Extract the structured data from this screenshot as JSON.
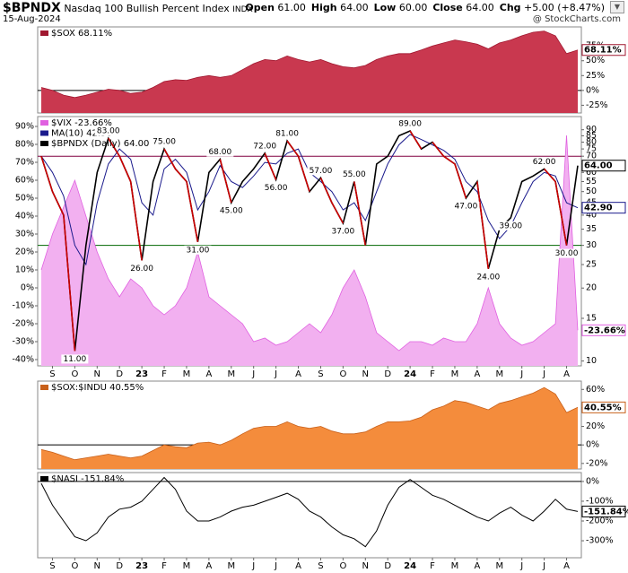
{
  "header": {
    "symbol": "$BPNDX",
    "name": "Nasdaq 100 Bullish Percent Index",
    "exchange": "INDX",
    "date": "15-Aug-2024",
    "quote": [
      {
        "label": "Open",
        "value": "61.00"
      },
      {
        "label": "High",
        "value": "64.00"
      },
      {
        "label": "Low",
        "value": "60.00"
      },
      {
        "label": "Close",
        "value": "64.00"
      },
      {
        "label": "Chg",
        "value": "+5.00 (+8.47%)"
      }
    ],
    "watermark": "@ StockCharts.com"
  },
  "chart_data": [
    {
      "type": "area",
      "y_axis_side": "right",
      "ylim": [
        -38,
        107
      ],
      "yticks": [
        {
          "value": 75,
          "label": "75%"
        },
        {
          "value": 50,
          "label": "50%"
        },
        {
          "value": 25,
          "label": "25%"
        },
        {
          "value": 0,
          "label": "0%"
        },
        {
          "value": -25,
          "label": "-25%"
        }
      ],
      "hlines": [
        {
          "value": 0,
          "color": "#000000"
        }
      ],
      "series": [
        {
          "name": "$SOX 68.11%",
          "color": "#c9384f",
          "line_color": "#a01830",
          "tag": "68.11%",
          "values": [
            5,
            0,
            -8,
            -12,
            -8,
            -3,
            2,
            0,
            -5,
            -3,
            5,
            15,
            18,
            17,
            22,
            25,
            22,
            25,
            35,
            45,
            52,
            50,
            58,
            52,
            48,
            52,
            45,
            40,
            38,
            42,
            52,
            58,
            62,
            62,
            68,
            75,
            80,
            85,
            82,
            78,
            70,
            80,
            85,
            92,
            98,
            100,
            92,
            62,
            68.11
          ]
        }
      ]
    },
    {
      "type": "line",
      "y_axis_side": "left",
      "categories": [
        null,
        "S",
        null,
        "O",
        null,
        "N",
        null,
        "D",
        null,
        "23",
        null,
        "F",
        null,
        "M",
        null,
        "A",
        null,
        "M",
        null,
        "J",
        null,
        "J",
        null,
        "A",
        null,
        "S",
        null,
        "O",
        null,
        "N",
        null,
        "D",
        null,
        "24",
        null,
        "F",
        null,
        "M",
        null,
        "A",
        null,
        "M",
        null,
        "J",
        null,
        "J",
        null,
        "A",
        null
      ],
      "ylim": [
        -43.5,
        95.5
      ],
      "yticks": [
        {
          "value": 90,
          "label": "90%"
        },
        {
          "value": 80,
          "label": "80%"
        },
        {
          "value": 70,
          "label": "70%"
        },
        {
          "value": 60,
          "label": "60%"
        },
        {
          "value": 50,
          "label": "50%"
        },
        {
          "value": 40,
          "label": "40%"
        },
        {
          "value": 30,
          "label": "30%"
        },
        {
          "value": 20,
          "label": "20%"
        },
        {
          "value": 10,
          "label": "10%"
        },
        {
          "value": 0,
          "label": "0%"
        },
        {
          "value": -10,
          "label": "-10%"
        },
        {
          "value": -20,
          "label": "-20%"
        },
        {
          "value": -30,
          "label": "-30%"
        },
        {
          "value": -40,
          "label": "-40%"
        }
      ],
      "y2lim": [
        9.55,
        102
      ],
      "y2log": true,
      "y2ticks": [
        90,
        85,
        80,
        75,
        70,
        65,
        60,
        55,
        50,
        45,
        40,
        35,
        30,
        25,
        20,
        15,
        10
      ],
      "hlines": [
        {
          "value": 70,
          "color": "#800040",
          "axis": "y2"
        },
        {
          "value": 30,
          "color": "#006600",
          "axis": "y2"
        }
      ],
      "series": [
        {
          "name": "$VIX -23.66%",
          "color": "#f2b0f0",
          "line_color": "#e060e0",
          "style": "area",
          "axis": "y",
          "tag": "-23.66%",
          "values": [
            10,
            30,
            45,
            60,
            40,
            20,
            5,
            -5,
            5,
            0,
            -10,
            -15,
            -10,
            0,
            20,
            -5,
            -10,
            -15,
            -20,
            -30,
            -28,
            -32,
            -30,
            -25,
            -20,
            -25,
            -15,
            0,
            10,
            -5,
            -25,
            -30,
            -35,
            -30,
            -30,
            -32,
            -28,
            -30,
            -30,
            -20,
            0,
            -20,
            -28,
            -32,
            -30,
            -25,
            -20,
            85,
            -23.66
          ]
        },
        {
          "name": "MA(10) 42.90",
          "color": "#1a1a8c",
          "axis": "y2",
          "tag": "42.90",
          "values": [
            70,
            60,
            48,
            30,
            25,
            45,
            65,
            75,
            68,
            45,
            40,
            62,
            68,
            60,
            42,
            50,
            64,
            55,
            52,
            58,
            66,
            65,
            72,
            75,
            60,
            55,
            50,
            42,
            45,
            38,
            50,
            65,
            78,
            86,
            82,
            78,
            74,
            68,
            55,
            50,
            38,
            32,
            36,
            45,
            55,
            60,
            58,
            45,
            42.9
          ]
        },
        {
          "name": "$BPNDX (Daily) 64.00",
          "color": "#000000",
          "down_color": "#cc0000",
          "axis": "y2",
          "tag": "64.00",
          "values": [
            70,
            50,
            40,
            11,
            30,
            60,
            83,
            70,
            55,
            26,
            55,
            75,
            62,
            55,
            31,
            60,
            68,
            45,
            55,
            62,
            72,
            56,
            81,
            70,
            50,
            57,
            45,
            37,
            55,
            30,
            65,
            70,
            85,
            89,
            75,
            80,
            70,
            65,
            47,
            55,
            24,
            35,
            39,
            55,
            58,
            62,
            55,
            30,
            64
          ],
          "value_labels": [
            null,
            null,
            null,
            "11.00",
            null,
            null,
            "83.00",
            null,
            null,
            "26.00",
            null,
            "75.00",
            null,
            null,
            "31.00",
            null,
            "68.00",
            "45.00",
            null,
            null,
            "72.00",
            "56.00",
            "81.00",
            null,
            null,
            "57.00",
            null,
            "37.00",
            "55.00",
            null,
            null,
            null,
            null,
            "89.00",
            null,
            null,
            null,
            null,
            "47.00",
            null,
            "24.00",
            null,
            "39.00",
            null,
            null,
            "62.00",
            null,
            "30.00",
            null
          ]
        }
      ]
    },
    {
      "type": "area",
      "y_axis_side": "right",
      "ylim": [
        -26,
        69
      ],
      "yticks": [
        {
          "value": 60,
          "label": "60%"
        },
        {
          "value": 40,
          "label": "40%"
        },
        {
          "value": 20,
          "label": "20%"
        },
        {
          "value": 0,
          "label": "0%"
        },
        {
          "value": -20,
          "label": "-20%"
        }
      ],
      "hlines": [
        {
          "value": 0,
          "color": "#000000"
        }
      ],
      "series": [
        {
          "name": "$SOX:$INDU 40.55%",
          "color": "#f48c3c",
          "line_color": "#c8601a",
          "tag": "40.55%",
          "values": [
            -5,
            -8,
            -12,
            -16,
            -14,
            -12,
            -10,
            -12,
            -14,
            -12,
            -6,
            0,
            -2,
            -3,
            2,
            3,
            0,
            5,
            12,
            18,
            20,
            20,
            25,
            20,
            18,
            20,
            15,
            12,
            12,
            14,
            20,
            25,
            25,
            26,
            30,
            38,
            42,
            48,
            46,
            42,
            38,
            45,
            48,
            52,
            56,
            62,
            55,
            35,
            40.55
          ]
        }
      ]
    },
    {
      "type": "line",
      "y_axis_side": "right",
      "categories": [
        null,
        "S",
        null,
        "O",
        null,
        "N",
        null,
        "D",
        null,
        "23",
        null,
        "F",
        null,
        "M",
        null,
        "A",
        null,
        "M",
        null,
        "J",
        null,
        "J",
        null,
        "A",
        null,
        "S",
        null,
        "O",
        null,
        "N",
        null,
        "D",
        null,
        "24",
        null,
        "F",
        null,
        "M",
        null,
        "A",
        null,
        "M",
        null,
        "J",
        null,
        "J",
        null,
        "A",
        null
      ],
      "ylim": [
        -386,
        45
      ],
      "yticks": [
        {
          "value": 0,
          "label": "0%"
        },
        {
          "value": -100,
          "label": "-100%"
        },
        {
          "value": -200,
          "label": "-200%"
        },
        {
          "value": -300,
          "label": "-300%"
        }
      ],
      "hlines": [
        {
          "value": 0,
          "color": "#000000"
        }
      ],
      "series": [
        {
          "name": "$NASI -151.84%",
          "color": "#000000",
          "tag": "-151.84%",
          "values": [
            -10,
            -120,
            -200,
            -280,
            -300,
            -260,
            -180,
            -140,
            -130,
            -100,
            -40,
            20,
            -40,
            -150,
            -200,
            -200,
            -180,
            -150,
            -130,
            -120,
            -100,
            -80,
            -60,
            -90,
            -150,
            -180,
            -230,
            -270,
            -290,
            -330,
            -250,
            -120,
            -30,
            10,
            -30,
            -70,
            -90,
            -120,
            -150,
            -180,
            -200,
            -160,
            -130,
            -170,
            -200,
            -150,
            -90,
            -140,
            -151.84
          ]
        }
      ]
    }
  ]
}
